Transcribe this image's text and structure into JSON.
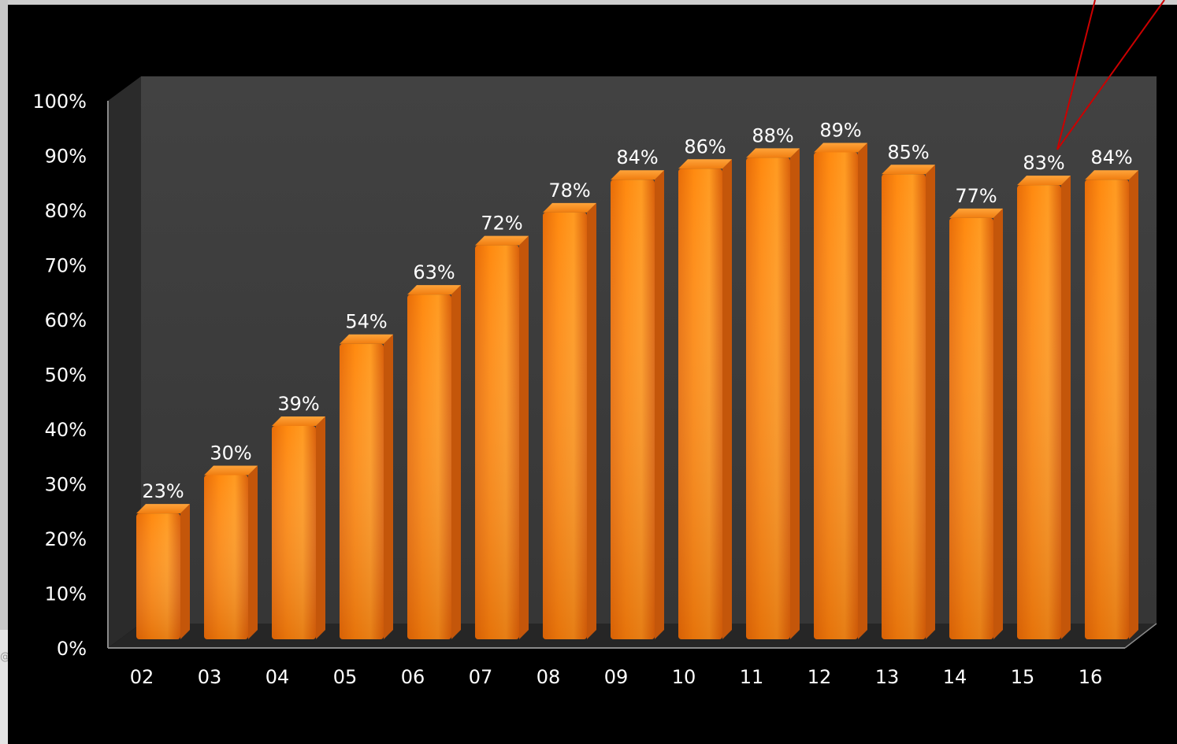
{
  "chart_data": {
    "type": "bar",
    "title": "",
    "xlabel": "",
    "ylabel": "",
    "categories": [
      "02",
      "03",
      "04",
      "05",
      "06",
      "07",
      "08",
      "09",
      "10",
      "11",
      "12",
      "13",
      "14",
      "15",
      "16"
    ],
    "values": [
      23,
      30,
      39,
      54,
      63,
      72,
      78,
      84,
      86,
      88,
      89,
      85,
      77,
      83,
      84
    ],
    "data_labels": [
      "23%",
      "30%",
      "39%",
      "54%",
      "63%",
      "72%",
      "78%",
      "84%",
      "86%",
      "88%",
      "89%",
      "85%",
      "77%",
      "83%",
      "84%"
    ],
    "ylim": [
      0,
      100
    ],
    "y_ticks": [
      0,
      10,
      20,
      30,
      40,
      50,
      60,
      70,
      80,
      90,
      100
    ],
    "y_tick_labels": [
      "0%",
      "10%",
      "20%",
      "30%",
      "40%",
      "50%",
      "60%",
      "70%",
      "80%",
      "90%",
      "100%"
    ],
    "grid": false,
    "legend": "none",
    "style": "3d",
    "colors": {
      "page_background": "#000000",
      "plot_wall": "#3a3a3a",
      "bar": "#ff8a10",
      "bar_dark": "#d9600a",
      "text": "#ffffff",
      "callout_arrow": "#cc0000"
    }
  },
  "edge_glyph": "@"
}
